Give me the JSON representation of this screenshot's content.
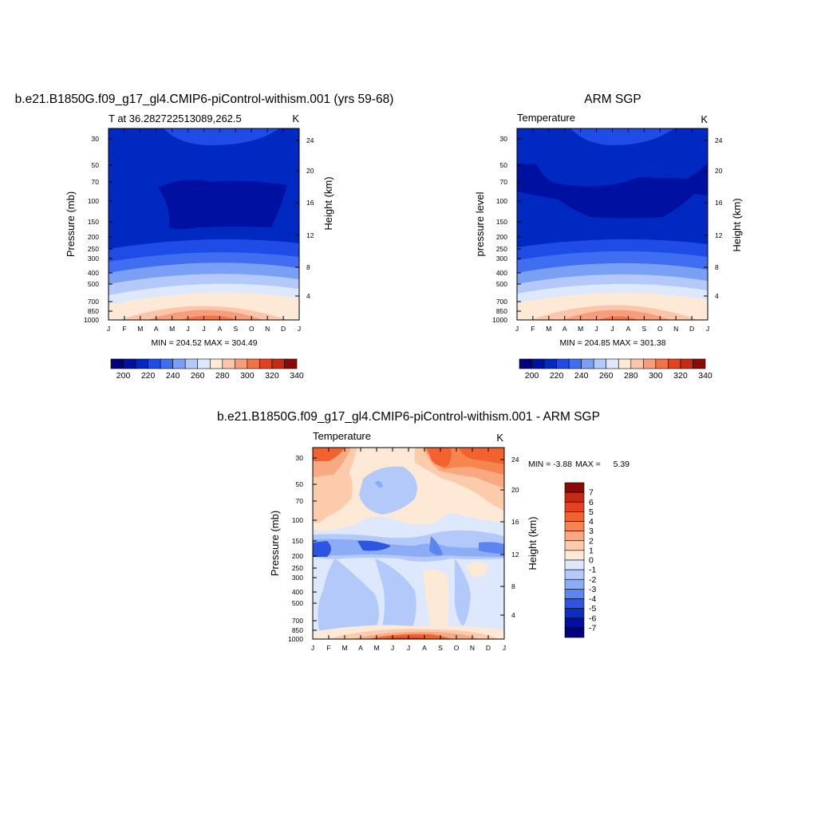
{
  "chart_data": [
    {
      "type": "heatmap",
      "title": "b.e21.B1850G.f09_g17_gl4.CMIP6-piControl-withism.001 (yrs 59-68)",
      "subtitle_left": "T at 36.282722513089,262.5",
      "subtitle_right": "K",
      "ylabel": "Pressure (mb)",
      "y2label": "Height (km)",
      "stats": "MIN = 204.52 MAX = 304.49",
      "x": [
        "J",
        "F",
        "M",
        "A",
        "M",
        "J",
        "J",
        "A",
        "S",
        "O",
        "N",
        "D",
        "J"
      ],
      "y_ticks": [
        "30",
        "50",
        "70",
        "100",
        "150",
        "200",
        "250",
        "300",
        "400",
        "500",
        "700",
        "850",
        "1000"
      ],
      "y2_ticks": [
        "24",
        "20",
        "16",
        "12",
        "8",
        "4"
      ],
      "colorbar_labels": [
        "200",
        "220",
        "240",
        "260",
        "280",
        "300",
        "320",
        "340"
      ],
      "colorbar_colors": [
        "#00007f",
        "#0010a0",
        "#0029c2",
        "#1f4ce6",
        "#3f6ff0",
        "#7aa0f6",
        "#b3c9fa",
        "#dde8fc",
        "#fde9d6",
        "#fcc4a8",
        "#f89d7c",
        "#f27248",
        "#e34220",
        "#c52a12",
        "#8b0a05"
      ]
    },
    {
      "type": "heatmap",
      "title": "ARM SGP",
      "subtitle_left": "Temperature",
      "subtitle_right": "K",
      "ylabel": "pressure level",
      "y2label": "Height (km)",
      "stats": "MIN = 204.85 MAX = 301.38",
      "x": [
        "J",
        "F",
        "M",
        "A",
        "M",
        "J",
        "J",
        "A",
        "S",
        "O",
        "N",
        "D",
        "J"
      ],
      "y_ticks": [
        "30",
        "50",
        "70",
        "100",
        "150",
        "200",
        "250",
        "300",
        "400",
        "500",
        "700",
        "850",
        "1000"
      ],
      "y2_ticks": [
        "24",
        "20",
        "16",
        "12",
        "8",
        "4"
      ],
      "colorbar_labels": [
        "200",
        "220",
        "240",
        "260",
        "280",
        "300",
        "320",
        "340"
      ],
      "colorbar_colors": [
        "#00007f",
        "#0010a0",
        "#0029c2",
        "#1f4ce6",
        "#3f6ff0",
        "#7aa0f6",
        "#b3c9fa",
        "#dde8fc",
        "#fde9d6",
        "#fcc4a8",
        "#f89d7c",
        "#f27248",
        "#e34220",
        "#c52a12",
        "#8b0a05"
      ]
    },
    {
      "type": "heatmap",
      "title": "b.e21.B1850G.f09_g17_gl4.CMIP6-piControl-withism.001 - ARM SGP",
      "subtitle_left": "Temperature",
      "subtitle_right": "K",
      "ylabel": "Pressure (mb)",
      "y2label": "Height (km)",
      "stats_min_label": "MIN =",
      "stats_min": "-3.88",
      "stats_max_label": "MAX =",
      "stats_max": "5.39",
      "x": [
        "J",
        "F",
        "M",
        "A",
        "M",
        "J",
        "J",
        "A",
        "S",
        "O",
        "N",
        "D",
        "J"
      ],
      "y_ticks": [
        "30",
        "50",
        "70",
        "100",
        "150",
        "200",
        "250",
        "300",
        "400",
        "500",
        "700",
        "850",
        "1000"
      ],
      "y2_ticks": [
        "24",
        "20",
        "16",
        "12",
        "8",
        "4"
      ],
      "colorbar_labels": [
        "7",
        "6",
        "5",
        "4",
        "3",
        "2",
        "1",
        "0",
        "-1",
        "-2",
        "-3",
        "-4",
        "-5",
        "-6",
        "-7"
      ],
      "colorbar_colors": [
        "#8b0a05",
        "#c52a12",
        "#e34220",
        "#f2622f",
        "#f68550",
        "#f9a982",
        "#fccbac",
        "#fde9d6",
        "#dde8fc",
        "#b3c9fa",
        "#8cacf5",
        "#5c85ee",
        "#2c56e2",
        "#0c2ec0",
        "#0010a0",
        "#00007f"
      ]
    }
  ]
}
